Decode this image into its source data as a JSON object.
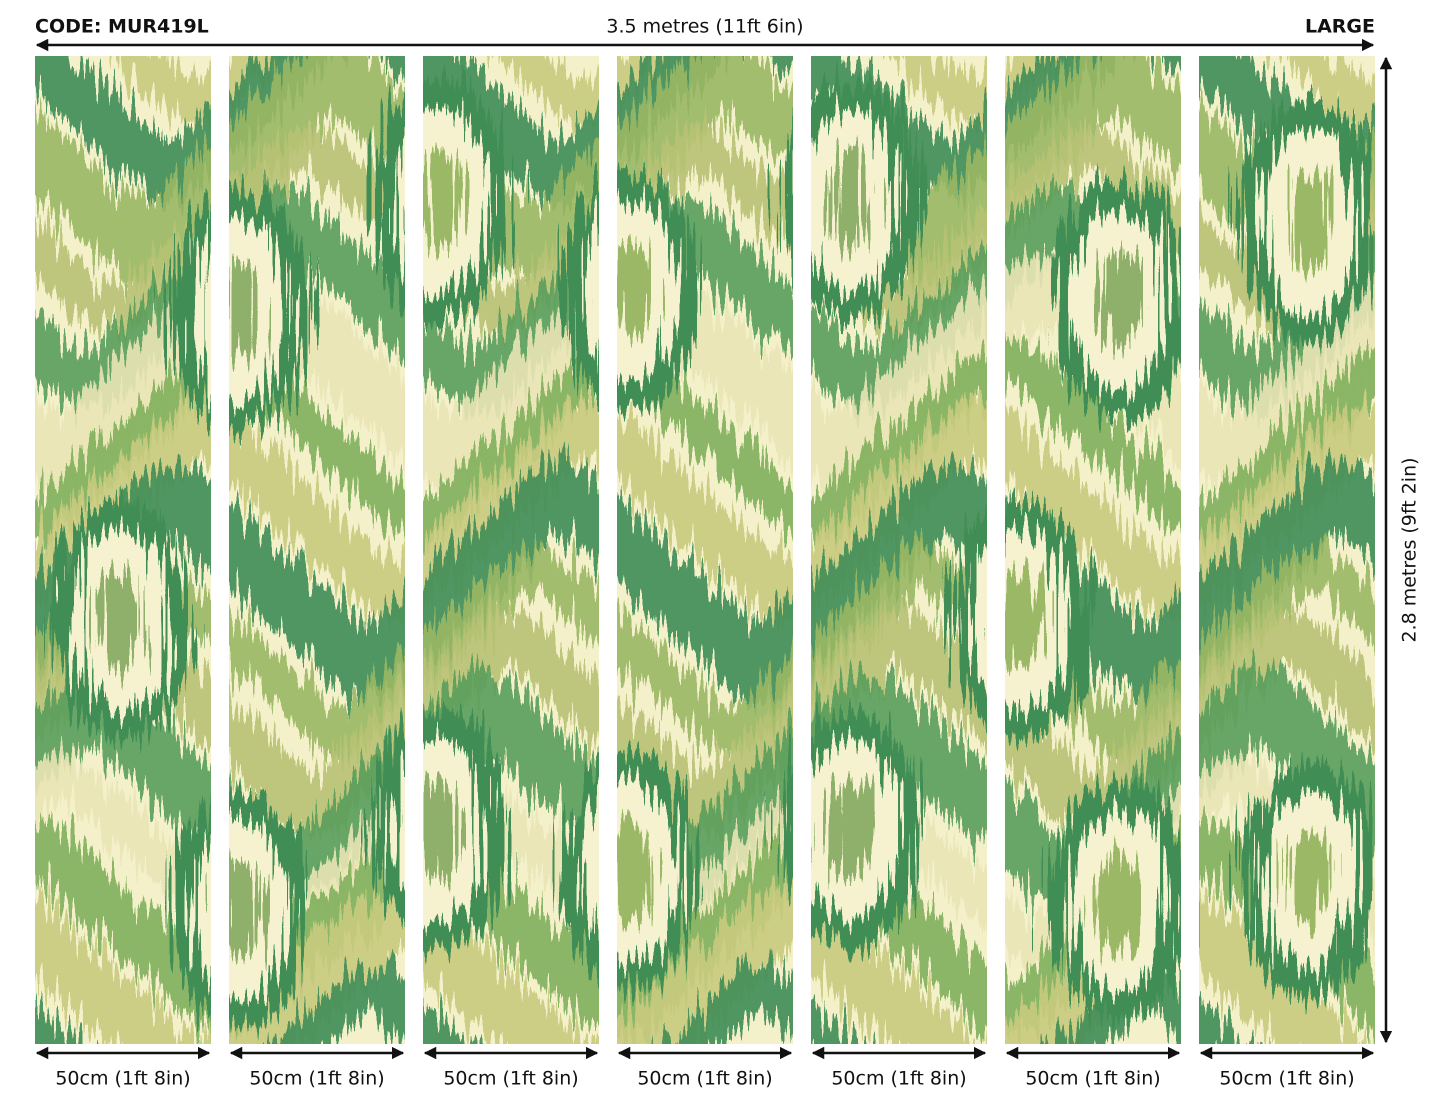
{
  "header": {
    "code": "CODE: MUR419L",
    "width": "3.5 metres (11ft 6in)",
    "size": "LARGE"
  },
  "height": "2.8 metres (9ft 2in)",
  "panels": [
    "50cm (1ft 8in)",
    "50cm (1ft 8in)",
    "50cm (1ft 8in)",
    "50cm (1ft 8in)",
    "50cm (1ft 8in)",
    "50cm (1ft 8in)",
    "50cm (1ft 8in)"
  ]
}
